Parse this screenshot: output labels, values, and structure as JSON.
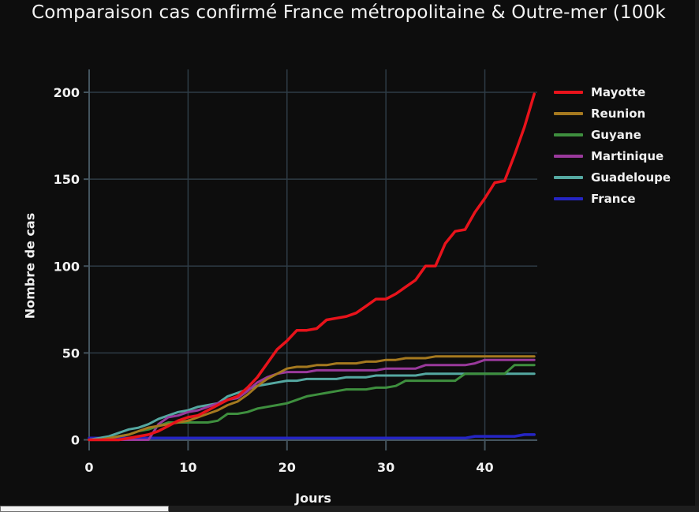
{
  "title": "Comparaison cas confirmé France métropolitaine & Outre-mer (100k",
  "colors": {
    "background": "#0d0d0d",
    "grid": "#2e3c46",
    "axis": "#44545e",
    "text": "#f0f0f0"
  },
  "chart_data": {
    "type": "line",
    "title": "Comparaison cas confirmé France métropolitaine & Outre-mer (100k",
    "xlabel": "Jours",
    "ylabel": "Nombre de cas",
    "xlim": [
      0,
      45.3
    ],
    "ylim": [
      0,
      200
    ],
    "x_ticks": [
      0,
      10,
      20,
      30,
      40
    ],
    "y_ticks": [
      0,
      50,
      100,
      150,
      200
    ],
    "grid": true,
    "legend_position": "right-outside",
    "x": [
      0,
      1,
      2,
      3,
      4,
      5,
      6,
      7,
      8,
      9,
      10,
      11,
      12,
      13,
      14,
      15,
      16,
      17,
      18,
      19,
      20,
      21,
      22,
      23,
      24,
      25,
      26,
      27,
      28,
      29,
      30,
      31,
      32,
      33,
      34,
      35,
      36,
      37,
      38,
      39,
      40,
      41,
      42,
      43,
      44,
      45
    ],
    "series": [
      {
        "name": "Mayotte",
        "color": "#e8131b",
        "values": [
          0,
          0,
          0,
          0,
          1,
          2,
          3,
          5,
          8,
          11,
          13,
          14,
          17,
          20,
          23,
          25,
          30,
          36,
          44,
          52,
          57,
          63,
          63,
          64,
          69,
          70,
          71,
          73,
          77,
          81,
          81,
          84,
          88,
          92,
          100,
          100,
          113,
          120,
          121,
          131,
          139,
          148,
          149,
          164,
          180,
          199
        ]
      },
      {
        "name": "Reunion",
        "color": "#a5791f",
        "values": [
          0,
          0,
          1,
          2,
          3,
          5,
          7,
          8,
          9,
          10,
          11,
          13,
          15,
          17,
          20,
          22,
          26,
          31,
          35,
          38,
          41,
          42,
          42,
          43,
          43,
          44,
          44,
          44,
          45,
          45,
          46,
          46,
          47,
          47,
          47,
          48,
          48,
          48,
          48,
          48,
          48,
          48,
          48,
          48,
          48,
          48
        ]
      },
      {
        "name": "Guyane",
        "color": "#3e8f3e",
        "values": [
          0,
          0,
          1,
          2,
          3,
          5,
          6,
          8,
          10,
          10,
          10,
          10,
          10,
          11,
          15,
          15,
          16,
          18,
          19,
          20,
          21,
          23,
          25,
          26,
          27,
          28,
          29,
          29,
          29,
          30,
          30,
          31,
          34,
          34,
          34,
          34,
          34,
          34,
          38,
          38,
          38,
          38,
          38,
          43,
          43,
          43
        ]
      },
      {
        "name": "Martinique",
        "color": "#99399b",
        "values": [
          0,
          0,
          0,
          0,
          0,
          0,
          0,
          9,
          13,
          14,
          16,
          17,
          19,
          21,
          23,
          24,
          28,
          33,
          36,
          38,
          39,
          39,
          39,
          40,
          40,
          40,
          40,
          40,
          40,
          40,
          41,
          41,
          41,
          41,
          43,
          43,
          43,
          43,
          43,
          44,
          46,
          46,
          46,
          46,
          46,
          46
        ]
      },
      {
        "name": "Guadeloupe",
        "color": "#55a8a1",
        "values": [
          0,
          1,
          2,
          4,
          6,
          7,
          9,
          12,
          14,
          16,
          17,
          19,
          20,
          21,
          25,
          27,
          29,
          31,
          32,
          33,
          34,
          34,
          35,
          35,
          35,
          35,
          36,
          36,
          36,
          37,
          37,
          37,
          37,
          37,
          38,
          38,
          38,
          38,
          38,
          38,
          38,
          38,
          38,
          38,
          38,
          38
        ]
      },
      {
        "name": "France",
        "color": "#2525c4",
        "values": [
          1,
          1,
          1,
          1,
          1,
          1,
          1,
          1,
          1,
          1,
          1,
          1,
          1,
          1,
          1,
          1,
          1,
          1,
          1,
          1,
          1,
          1,
          1,
          1,
          1,
          1,
          1,
          1,
          1,
          1,
          1,
          1,
          1,
          1,
          1,
          1,
          1,
          1,
          1,
          2,
          2,
          2,
          2,
          2,
          3,
          3
        ]
      }
    ]
  }
}
